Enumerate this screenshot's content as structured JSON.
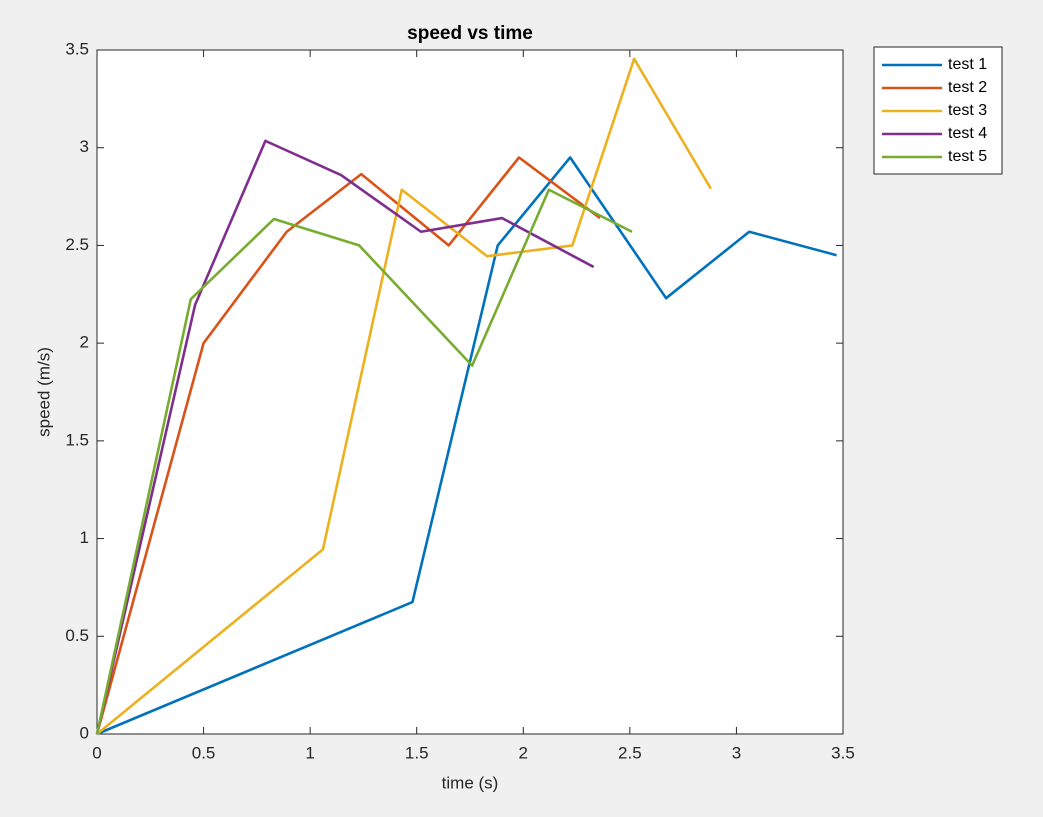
{
  "chart_data": {
    "type": "line",
    "title": "speed vs time",
    "x_label": "time (s)",
    "y_label": "speed (m/s)",
    "xlim": [
      0,
      3.5
    ],
    "xticks": [
      0,
      0.5,
      1,
      1.5,
      2,
      2.5,
      3,
      3.5
    ],
    "ylim": [
      0,
      3.5
    ],
    "yticks": [
      0,
      0.5,
      1,
      1.5,
      2,
      2.5,
      3,
      3.5
    ],
    "grid": false,
    "legend_location": "northeastoutside",
    "series": [
      {
        "name": "test 1",
        "color": "#0072bd",
        "x": [
          0,
          1.48,
          1.88,
          2.22,
          2.67,
          3.06,
          3.47
        ],
        "values": [
          0,
          0.675,
          2.5,
          2.95,
          2.23,
          2.57,
          2.45
        ]
      },
      {
        "name": "test 2",
        "color": "#d95319",
        "x": [
          0,
          0.5,
          0.89,
          1.24,
          1.65,
          1.98,
          2.36
        ],
        "values": [
          0,
          2.0,
          2.57,
          2.865,
          2.5,
          2.95,
          2.64
        ]
      },
      {
        "name": "test 3",
        "color": "#edb120",
        "x": [
          0,
          1.06,
          1.43,
          1.83,
          2.23,
          2.52,
          2.88
        ],
        "values": [
          0,
          0.945,
          2.785,
          2.445,
          2.5,
          3.455,
          2.79
        ]
      },
      {
        "name": "test 4",
        "color": "#7e2f8e",
        "x": [
          0,
          0.46,
          0.79,
          1.145,
          1.52,
          1.9,
          2.33
        ],
        "values": [
          0,
          2.195,
          3.035,
          2.86,
          2.57,
          2.64,
          2.39
        ]
      },
      {
        "name": "test 5",
        "color": "#77ac30",
        "x": [
          0,
          0.44,
          0.83,
          1.23,
          1.76,
          2.12,
          2.51
        ],
        "values": [
          0,
          2.225,
          2.635,
          2.5,
          1.885,
          2.785,
          2.57
        ]
      }
    ]
  }
}
